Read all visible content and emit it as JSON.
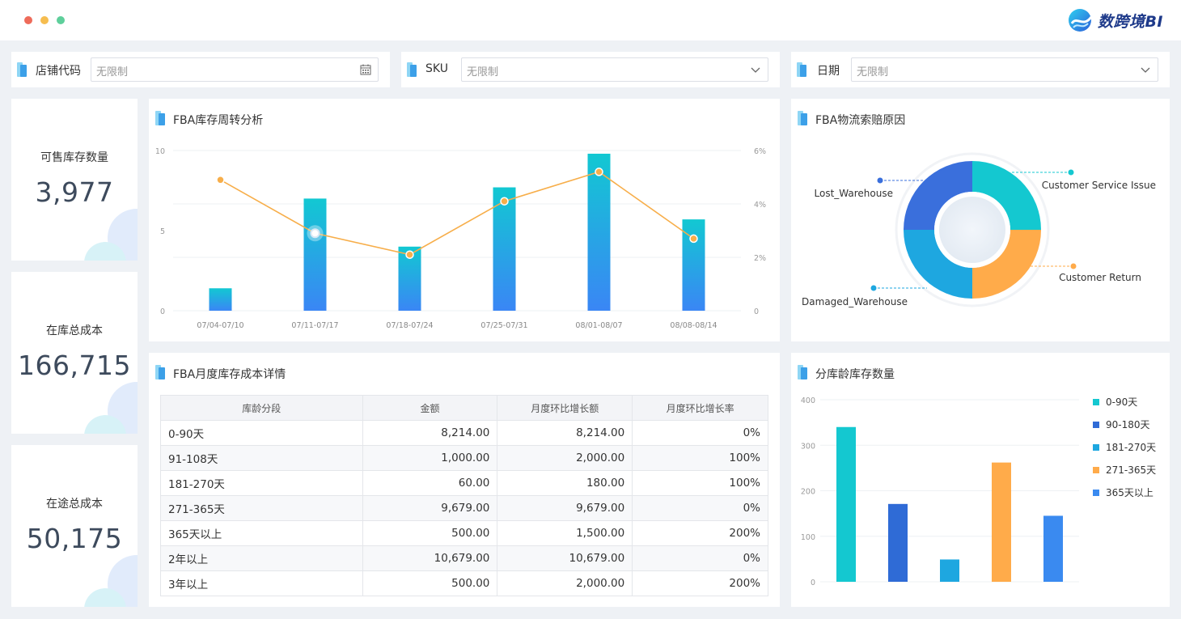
{
  "app": {
    "logo_text": "数跨境BI",
    "window_dots": [
      "#ee6b5a",
      "#f6bd4f",
      "#5ecf9b"
    ]
  },
  "filters": [
    {
      "label": "店铺代码",
      "placeholder": "无限制",
      "icon": "calendar-icon"
    },
    {
      "label": "SKU",
      "placeholder": "无限制",
      "icon": "chevron-down-icon"
    },
    {
      "label": "日期",
      "placeholder": "无限制",
      "icon": "chevron-down-icon"
    }
  ],
  "kpis": [
    {
      "label": "可售库存数量",
      "value": "3,977"
    },
    {
      "label": "在库总成本",
      "value": "166,715"
    },
    {
      "label": "在途总成本",
      "value": "50,175"
    }
  ],
  "turnover": {
    "title": "FBA库存周转分析",
    "chart_data": {
      "type": "bar",
      "categories": [
        "07/04-07/10",
        "07/11-07/17",
        "07/18-07/24",
        "07/25-07/31",
        "08/01-08/07",
        "08/08-08/14"
      ],
      "series": [
        {
          "name": "bar",
          "values": [
            1.4,
            7.0,
            4.0,
            7.7,
            9.8,
            5.7
          ]
        },
        {
          "name": "line",
          "values": [
            4.9,
            2.9,
            2.1,
            4.1,
            5.2,
            2.7
          ]
        }
      ],
      "y_left_ticks": [
        "10",
        "5",
        "0"
      ],
      "y_right_ticks": [
        "6%",
        "4%",
        "2%",
        "0"
      ],
      "ylim_left": [
        0,
        10
      ],
      "ylim_right": [
        0,
        6
      ]
    }
  },
  "claims": {
    "title": "FBA物流索赔原因",
    "chart_data": {
      "type": "pie",
      "labels": [
        "Customer Service Issue",
        "Customer Return",
        "Damaged_Warehouse",
        "Lost_Warehouse"
      ],
      "values": [
        25,
        25,
        25,
        25
      ],
      "colors": [
        "#14c8d0",
        "#ffab4a",
        "#1ea7e0",
        "#3a6fdc"
      ]
    }
  },
  "cost_table": {
    "title": "FBA月度库存成本详情",
    "headers": [
      "库龄分段",
      "金额",
      "月度环比增长额",
      "月度环比增长率"
    ],
    "rows": [
      [
        "0-90天",
        "8,214.00",
        "8,214.00",
        "0%"
      ],
      [
        "91-108天",
        "1,000.00",
        "2,000.00",
        "100%"
      ],
      [
        "181-270天",
        "60.00",
        "180.00",
        "100%"
      ],
      [
        "271-365天",
        "9,679.00",
        "9,679.00",
        "0%"
      ],
      [
        "365天以上",
        "500.00",
        "1,500.00",
        "200%"
      ],
      [
        "2年以上",
        "10,679.00",
        "10,679.00",
        "0%"
      ],
      [
        "3年以上",
        "500.00",
        "2,000.00",
        "200%"
      ]
    ]
  },
  "age_stock": {
    "title": "分库龄库存数量",
    "chart_data": {
      "type": "bar",
      "categories": [
        "0-90天",
        "90-180天",
        "181-270天",
        "271-365天",
        "365天以上"
      ],
      "values": [
        340,
        171,
        49,
        262,
        145
      ],
      "colors": [
        "#14c8d0",
        "#2f6bd6",
        "#1ea7e0",
        "#ffab4a",
        "#3a8af0"
      ],
      "y_ticks": [
        "400",
        "300",
        "200",
        "100",
        "0"
      ],
      "ylim": [
        0,
        400
      ]
    }
  }
}
